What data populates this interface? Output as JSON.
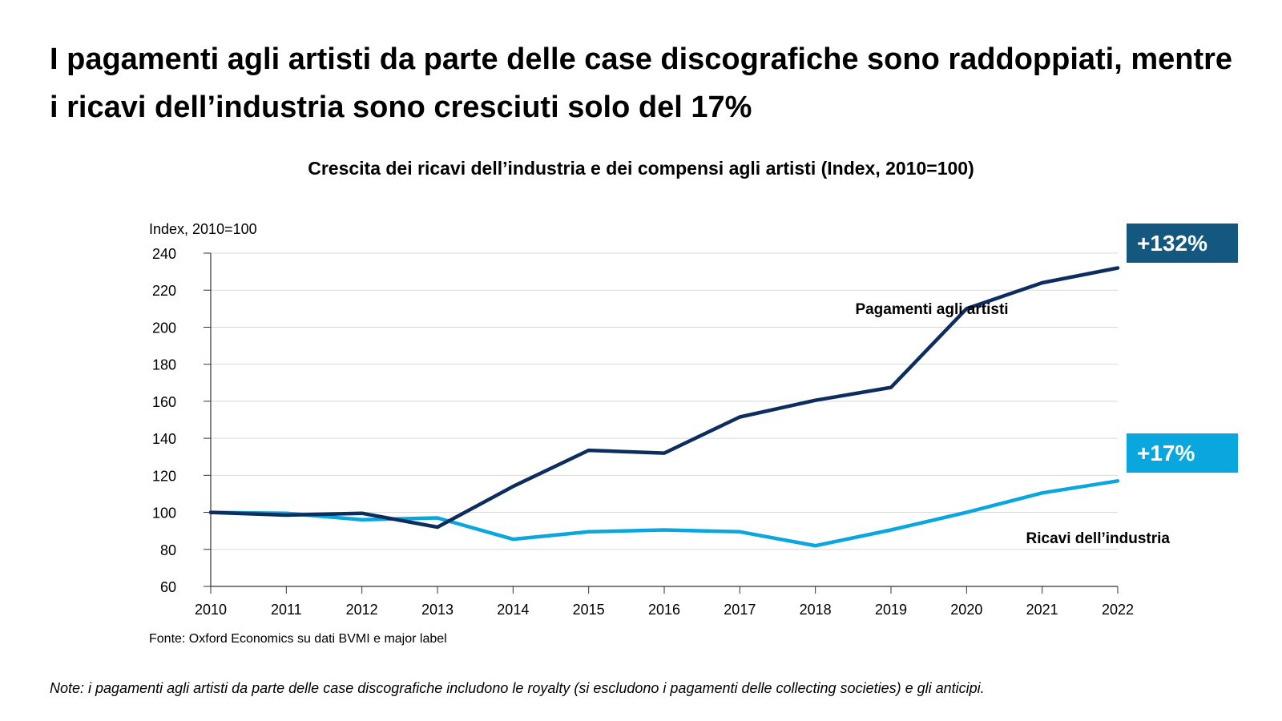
{
  "header": {
    "title": "I pagamenti agli artisti da parte delle case discografiche sono raddoppiati, mentre i ricavi dell’industria sono cresciuti solo del 17%"
  },
  "footer": {
    "source": "Fonte: Oxford Economics su dati BVMI e major label",
    "note": "Note: i pagamenti agli artisti da parte delle case discografiche includono le royalty (si escludono i pagamenti delle collecting societies) e gli anticipi."
  },
  "chart_data": {
    "type": "line",
    "title": "Crescita dei ricavi dell’industria e dei compensi agli artisti (Index, 2010=100)",
    "ylabel": "Index, 2010=100",
    "xlabel": "",
    "x": [
      "2010",
      "2011",
      "2012",
      "2013",
      "2014",
      "2015",
      "2016",
      "2017",
      "2018",
      "2019",
      "2020",
      "2021",
      "2022"
    ],
    "ylim": [
      60,
      240
    ],
    "yticks": [
      60,
      80,
      100,
      120,
      140,
      160,
      180,
      200,
      220,
      240
    ],
    "grid": true,
    "series": [
      {
        "name": "Pagamenti agli artisti",
        "color": "#0c2d5e",
        "values": [
          100,
          98.5,
          99.5,
          92,
          114,
          133.5,
          132,
          151.5,
          160.5,
          167.5,
          210,
          224,
          232
        ],
        "badge": {
          "text": "+132%",
          "color": "#14577f"
        }
      },
      {
        "name": "Ricavi dell’industria",
        "color": "#0aa7df",
        "values": [
          100,
          99.5,
          96,
          97,
          85.5,
          89.5,
          90.5,
          89.5,
          82,
          90.5,
          100,
          110.5,
          117
        ],
        "badge": {
          "text": "+17%",
          "color": "#0aa7df"
        }
      }
    ]
  }
}
